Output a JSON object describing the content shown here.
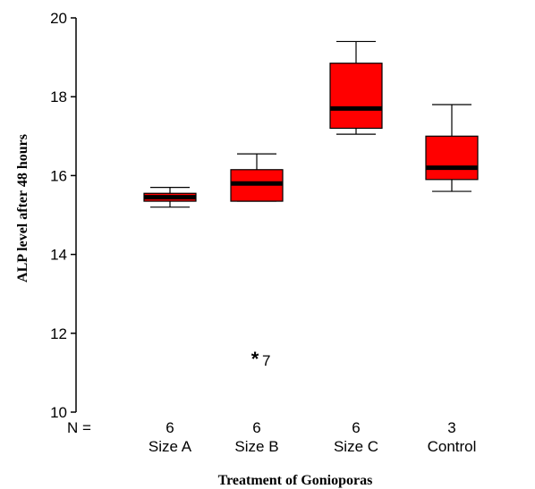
{
  "chart_data": {
    "type": "boxplot",
    "title": "",
    "xlabel": "Treatment of Gonioporas",
    "ylabel": "ALP level after 48 hours",
    "ylim": [
      10,
      20
    ],
    "y_ticks": [
      10,
      12,
      14,
      16,
      18,
      20
    ],
    "n_label": "N =",
    "categories": [
      "Size A",
      "Size B",
      "Size C",
      "Control"
    ],
    "n": [
      "6",
      "6",
      "6",
      "3"
    ],
    "boxes": [
      {
        "category": "Size A",
        "whisker_low": 15.2,
        "q1": 15.35,
        "median": 15.45,
        "q3": 15.55,
        "whisker_high": 15.7
      },
      {
        "category": "Size B",
        "whisker_low": 15.35,
        "q1": 15.35,
        "median": 15.8,
        "q3": 16.15,
        "whisker_high": 16.55
      },
      {
        "category": "Size C",
        "whisker_low": 17.05,
        "q1": 17.2,
        "median": 17.7,
        "q3": 18.85,
        "whisker_high": 19.4
      },
      {
        "category": "Control",
        "whisker_low": 15.6,
        "q1": 15.9,
        "median": 16.2,
        "q3": 17.0,
        "whisker_high": 17.8
      }
    ],
    "outliers": [
      {
        "category": "Size B",
        "value": 11.45,
        "marker": "*",
        "label": "7"
      }
    ],
    "box_color": "#ff0000",
    "grid": false,
    "legend": "none"
  }
}
